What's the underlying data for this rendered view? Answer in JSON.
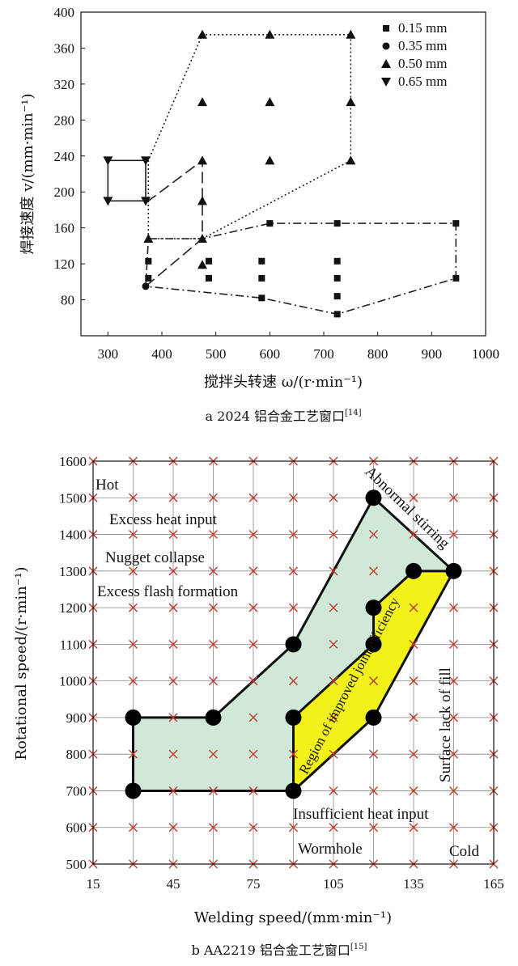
{
  "chart_data": [
    {
      "type": "scatter",
      "caption": "a  2024 铝合金工艺窗口",
      "caption_ref": "[14]",
      "xlabel": "搅拌头转速 ω/(r·min⁻¹)",
      "ylabel": "焊接速度 v/(mm·min⁻¹)",
      "xlim": [
        250,
        1000
      ],
      "ylim": [
        40,
        400
      ],
      "xticks": [
        300,
        400,
        500,
        600,
        700,
        800,
        900,
        1000
      ],
      "yticks": [
        80,
        120,
        160,
        200,
        240,
        280,
        320,
        360,
        400
      ],
      "legend_position": "top-right",
      "series": [
        {
          "name": "0.15 mm",
          "marker": "square",
          "points": [
            [
              375,
              104
            ],
            [
              375,
              123
            ],
            [
              487,
              104
            ],
            [
              487,
              123
            ],
            [
              585,
              82
            ],
            [
              585,
              104
            ],
            [
              585,
              123
            ],
            [
              600,
              165
            ],
            [
              725,
              64
            ],
            [
              725,
              84
            ],
            [
              725,
              104
            ],
            [
              725,
              123
            ],
            [
              725,
              165
            ],
            [
              945,
              104
            ],
            [
              945,
              165
            ]
          ]
        },
        {
          "name": "0.35 mm",
          "marker": "circle",
          "points": [
            [
              370,
              95
            ]
          ]
        },
        {
          "name": "0.50 mm",
          "marker": "triangle-up",
          "points": [
            [
              375,
              148
            ],
            [
              475,
              119
            ],
            [
              475,
              148
            ],
            [
              475,
              190
            ],
            [
              475,
              235
            ],
            [
              475,
              300
            ],
            [
              475,
              375
            ],
            [
              600,
              235
            ],
            [
              600,
              300
            ],
            [
              600,
              375
            ],
            [
              750,
              235
            ],
            [
              750,
              300
            ],
            [
              750,
              375
            ]
          ]
        },
        {
          "name": "0.65 mm",
          "marker": "triangle-down",
          "points": [
            [
              300,
              190
            ],
            [
              300,
              235
            ],
            [
              370,
              190
            ],
            [
              370,
              235
            ]
          ]
        }
      ]
    },
    {
      "type": "scatter",
      "caption": "b  AA2219 铝合金工艺窗口",
      "caption_ref": "[15]",
      "xlabel": "Welding speed/(mm·min⁻¹)",
      "ylabel": "Rotational speed/(r·min⁻¹)",
      "xlim": [
        15,
        165
      ],
      "ylim": [
        500,
        1600
      ],
      "xticks": [
        15,
        45,
        75,
        105,
        135,
        165
      ],
      "yticks": [
        500,
        600,
        700,
        800,
        900,
        1000,
        1100,
        1200,
        1300,
        1400,
        1500,
        1600
      ],
      "grid_x": [
        15,
        30,
        45,
        60,
        75,
        90,
        105,
        120,
        135,
        150,
        165
      ],
      "outer_window": [
        [
          30,
          700
        ],
        [
          30,
          900
        ],
        [
          60,
          900
        ],
        [
          90,
          1100
        ],
        [
          120,
          1500
        ],
        [
          150,
          1300
        ],
        [
          135,
          1300
        ],
        [
          120,
          1200
        ],
        [
          120,
          900
        ],
        [
          90,
          700
        ]
      ],
      "improved_window": [
        [
          90,
          700
        ],
        [
          90,
          900
        ],
        [
          120,
          1100
        ],
        [
          120,
          1200
        ],
        [
          135,
          1300
        ],
        [
          150,
          1300
        ],
        [
          120,
          900
        ]
      ],
      "annotations": {
        "hot": "Hot",
        "excess_heat": "Excess heat input",
        "nugget": "Nugget collapse",
        "flash": "Excess flash formation",
        "abnormal": "Abnormal stirring",
        "improved": "Region of improved joint efficiency",
        "surface": "Surface lack of fill",
        "insufficient": "Insufficient heat input",
        "wormhole": "Wormhole",
        "cold": "Cold"
      },
      "colors": {
        "outer_fill": "#cfe8d8",
        "improved_fill": "#f2f21a",
        "cross": "#c0392b"
      }
    }
  ]
}
